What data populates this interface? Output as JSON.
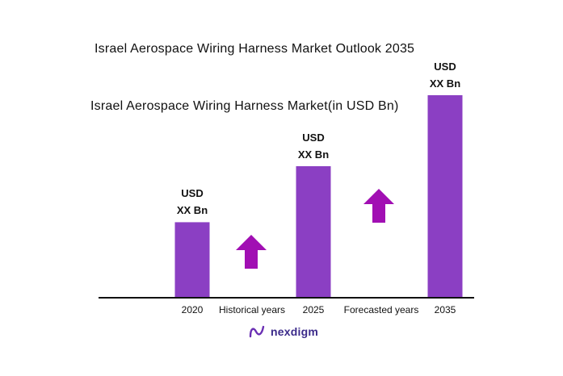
{
  "chart_data": {
    "type": "bar",
    "title": "Israel Aerospace Wiring Harness Market Outlook 2035",
    "subtitle": "Israel Aerospace Wiring Harness Market(in USD Bn)",
    "categories": [
      "2020",
      "2025",
      "2035"
    ],
    "values": [
      1.0,
      1.75,
      2.7
    ],
    "data_labels": [
      [
        "USD",
        "XX Bn"
      ],
      [
        "USD",
        "XX Bn"
      ],
      [
        "USD",
        "XX Bn"
      ]
    ],
    "annotations": [
      "Historical years",
      "Forecasted years"
    ],
    "ylim": [
      0,
      2.7
    ],
    "grid": false,
    "bar_color": "#8b3fc3",
    "arrow_color": "#a10fb3"
  },
  "brand": {
    "name": "nexdigm",
    "accent": "#6a2fb3"
  }
}
